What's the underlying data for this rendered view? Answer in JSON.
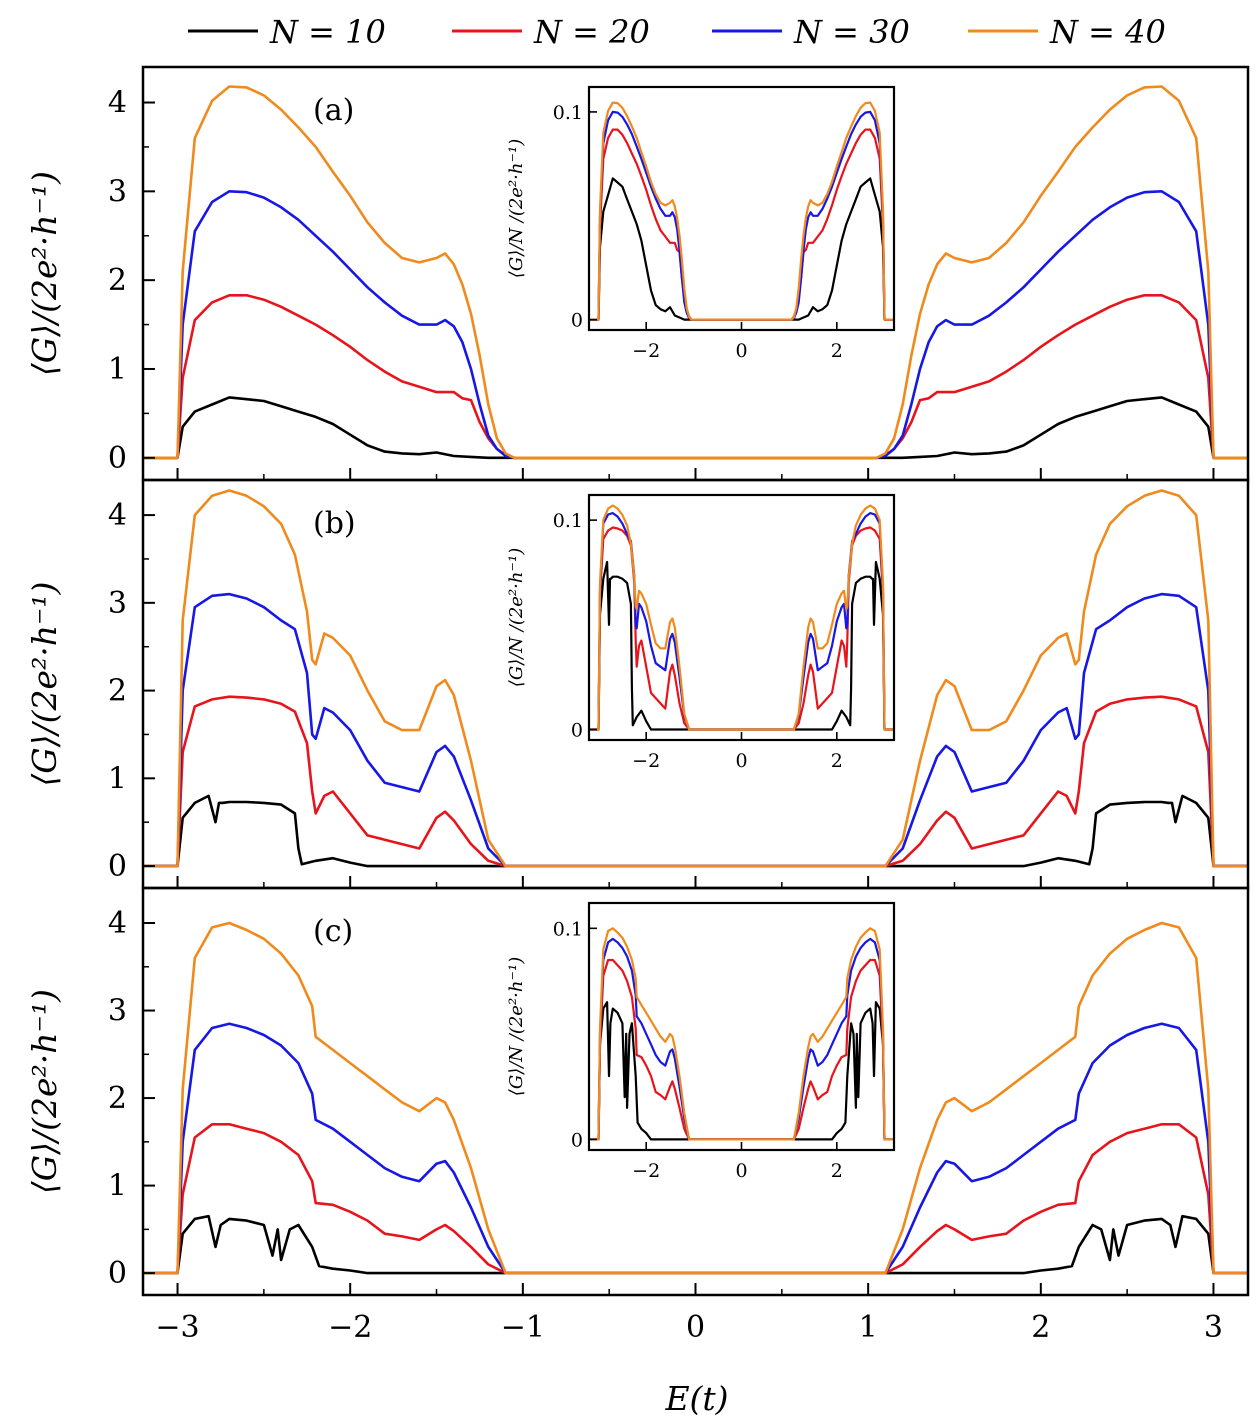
{
  "chart_data": {
    "type": "line",
    "legend": {
      "placement": "top",
      "entries": [
        {
          "label": "N = 10",
          "color": "#000000"
        },
        {
          "label": "N = 20",
          "color": "#e8141c"
        },
        {
          "label": "N = 30",
          "color": "#1717e6"
        },
        {
          "label": "N = 40",
          "color": "#f08a1c"
        }
      ]
    },
    "xlabel": "E(t)",
    "ylabel": "⟨G⟩/(2e²·h⁻¹)",
    "xlim": [
      -3.2,
      3.2
    ],
    "ylim": [
      -0.25,
      4.4
    ],
    "xticks": [
      -3,
      -2,
      -1,
      0,
      1,
      2,
      3
    ],
    "yticks": [
      0,
      1,
      2,
      3,
      4
    ],
    "inset": {
      "ylabel": "⟨G⟩/N /(2e²·h⁻¹)",
      "xlim": [
        -3.2,
        3.2
      ],
      "ylim": [
        -0.005,
        0.112
      ],
      "xticks": [
        -2,
        0,
        2
      ],
      "yticks": [
        0,
        0.1
      ],
      "yticklabels": [
        "0",
        "0.1"
      ]
    },
    "panels": [
      {
        "tag": "(a)",
        "series": [
          {
            "name": "N = 10",
            "x": [
              -3.0,
              -2.97,
              -2.9,
              -2.8,
              -2.7,
              -2.6,
              -2.5,
              -2.4,
              -2.3,
              -2.2,
              -2.1,
              -2.0,
              -1.9,
              -1.8,
              -1.7,
              -1.6,
              -1.5,
              -1.4,
              -1.3,
              -1.2,
              -1.0
            ],
            "y": [
              0.0,
              0.35,
              0.52,
              0.6,
              0.68,
              0.66,
              0.64,
              0.58,
              0.52,
              0.46,
              0.38,
              0.26,
              0.14,
              0.07,
              0.05,
              0.04,
              0.06,
              0.02,
              0.01,
              0.0,
              0.0
            ]
          },
          {
            "name": "N = 20",
            "x": [
              -3.0,
              -2.97,
              -2.9,
              -2.8,
              -2.7,
              -2.6,
              -2.5,
              -2.4,
              -2.3,
              -2.2,
              -2.1,
              -2.0,
              -1.9,
              -1.8,
              -1.7,
              -1.6,
              -1.5,
              -1.4,
              -1.35,
              -1.3,
              -1.25,
              -1.2,
              -1.15,
              -1.1,
              -1.05
            ],
            "y": [
              0.0,
              0.9,
              1.55,
              1.75,
              1.83,
              1.83,
              1.78,
              1.7,
              1.6,
              1.5,
              1.38,
              1.25,
              1.1,
              0.97,
              0.86,
              0.8,
              0.74,
              0.74,
              0.67,
              0.65,
              0.4,
              0.22,
              0.1,
              0.03,
              0.0
            ]
          },
          {
            "name": "N = 30",
            "x": [
              -3.0,
              -2.97,
              -2.9,
              -2.8,
              -2.7,
              -2.6,
              -2.5,
              -2.4,
              -2.3,
              -2.2,
              -2.1,
              -2.0,
              -1.9,
              -1.8,
              -1.7,
              -1.6,
              -1.5,
              -1.45,
              -1.4,
              -1.35,
              -1.3,
              -1.25,
              -1.2,
              -1.15,
              -1.1,
              -1.05
            ],
            "y": [
              0.0,
              1.5,
              2.55,
              2.88,
              3.0,
              2.99,
              2.93,
              2.82,
              2.68,
              2.5,
              2.32,
              2.12,
              1.92,
              1.75,
              1.6,
              1.5,
              1.5,
              1.55,
              1.48,
              1.3,
              1.0,
              0.6,
              0.25,
              0.1,
              0.02,
              0.0
            ]
          },
          {
            "name": "N = 40",
            "x": [
              -3.0,
              -2.97,
              -2.9,
              -2.8,
              -2.7,
              -2.6,
              -2.5,
              -2.4,
              -2.3,
              -2.2,
              -2.1,
              -2.0,
              -1.9,
              -1.8,
              -1.7,
              -1.6,
              -1.5,
              -1.45,
              -1.4,
              -1.35,
              -1.3,
              -1.25,
              -1.2,
              -1.15,
              -1.1,
              -1.05
            ],
            "y": [
              0.0,
              2.1,
              3.6,
              4.02,
              4.18,
              4.17,
              4.08,
              3.92,
              3.72,
              3.5,
              3.22,
              2.95,
              2.65,
              2.42,
              2.25,
              2.2,
              2.25,
              2.3,
              2.18,
              1.95,
              1.62,
              1.15,
              0.6,
              0.22,
              0.05,
              0.0
            ]
          }
        ]
      },
      {
        "tag": "(b)",
        "series": [
          {
            "name": "N = 10",
            "x": [
              -3.0,
              -2.97,
              -2.9,
              -2.82,
              -2.78,
              -2.76,
              -2.74,
              -2.7,
              -2.6,
              -2.5,
              -2.4,
              -2.32,
              -2.3,
              -2.28,
              -2.2,
              -2.1,
              -2.0,
              -1.9,
              -1.0
            ],
            "y": [
              0.0,
              0.55,
              0.72,
              0.8,
              0.5,
              0.72,
              0.72,
              0.73,
              0.73,
              0.72,
              0.7,
              0.6,
              0.2,
              0.02,
              0.06,
              0.09,
              0.04,
              0.0,
              0.0
            ]
          },
          {
            "name": "N = 20",
            "x": [
              -3.0,
              -2.97,
              -2.9,
              -2.8,
              -2.7,
              -2.6,
              -2.5,
              -2.4,
              -2.32,
              -2.25,
              -2.22,
              -2.2,
              -2.15,
              -2.1,
              -2.0,
              -1.9,
              -1.8,
              -1.7,
              -1.6,
              -1.5,
              -1.45,
              -1.4,
              -1.3,
              -1.2,
              -1.1
            ],
            "y": [
              0.0,
              1.3,
              1.82,
              1.9,
              1.93,
              1.92,
              1.9,
              1.85,
              1.76,
              1.4,
              0.85,
              0.6,
              0.8,
              0.85,
              0.6,
              0.35,
              0.3,
              0.25,
              0.2,
              0.55,
              0.62,
              0.52,
              0.25,
              0.06,
              0.0
            ]
          },
          {
            "name": "N = 30",
            "x": [
              -3.0,
              -2.97,
              -2.9,
              -2.8,
              -2.7,
              -2.6,
              -2.5,
              -2.4,
              -2.32,
              -2.25,
              -2.22,
              -2.2,
              -2.15,
              -2.1,
              -2.0,
              -1.9,
              -1.8,
              -1.7,
              -1.6,
              -1.5,
              -1.45,
              -1.4,
              -1.3,
              -1.2,
              -1.1
            ],
            "y": [
              0.0,
              2.0,
              2.95,
              3.08,
              3.1,
              3.05,
              2.95,
              2.8,
              2.7,
              2.2,
              1.5,
              1.45,
              1.8,
              1.75,
              1.55,
              1.2,
              0.95,
              0.9,
              0.85,
              1.3,
              1.37,
              1.25,
              0.75,
              0.2,
              0.0
            ]
          },
          {
            "name": "N = 40",
            "x": [
              -3.0,
              -2.97,
              -2.9,
              -2.8,
              -2.7,
              -2.6,
              -2.5,
              -2.4,
              -2.32,
              -2.25,
              -2.22,
              -2.2,
              -2.15,
              -2.1,
              -2.0,
              -1.9,
              -1.8,
              -1.7,
              -1.6,
              -1.5,
              -1.45,
              -1.4,
              -1.3,
              -1.2,
              -1.1
            ],
            "y": [
              0.0,
              2.8,
              4.0,
              4.22,
              4.28,
              4.22,
              4.1,
              3.9,
              3.55,
              2.9,
              2.35,
              2.3,
              2.65,
              2.6,
              2.4,
              2.0,
              1.65,
              1.55,
              1.55,
              2.05,
              2.12,
              1.95,
              1.2,
              0.3,
              0.0
            ]
          }
        ]
      },
      {
        "tag": "(c)",
        "series": [
          {
            "name": "N = 10",
            "x": [
              -3.0,
              -2.97,
              -2.9,
              -2.82,
              -2.78,
              -2.75,
              -2.7,
              -2.6,
              -2.5,
              -2.45,
              -2.42,
              -2.4,
              -2.35,
              -2.3,
              -2.22,
              -2.18,
              -2.1,
              -2.0,
              -1.9,
              -1.0
            ],
            "y": [
              0.0,
              0.45,
              0.62,
              0.65,
              0.3,
              0.55,
              0.62,
              0.6,
              0.55,
              0.2,
              0.5,
              0.15,
              0.5,
              0.55,
              0.3,
              0.08,
              0.05,
              0.03,
              0.0,
              0.0
            ]
          },
          {
            "name": "N = 20",
            "x": [
              -3.0,
              -2.97,
              -2.9,
              -2.8,
              -2.7,
              -2.6,
              -2.5,
              -2.4,
              -2.3,
              -2.22,
              -2.2,
              -2.1,
              -2.0,
              -1.9,
              -1.8,
              -1.7,
              -1.6,
              -1.5,
              -1.45,
              -1.4,
              -1.3,
              -1.2,
              -1.1
            ],
            "y": [
              0.0,
              0.9,
              1.55,
              1.7,
              1.7,
              1.65,
              1.6,
              1.5,
              1.35,
              1.05,
              0.8,
              0.78,
              0.7,
              0.6,
              0.45,
              0.42,
              0.38,
              0.5,
              0.55,
              0.48,
              0.3,
              0.1,
              0.0
            ]
          },
          {
            "name": "N = 30",
            "x": [
              -3.0,
              -2.97,
              -2.9,
              -2.8,
              -2.7,
              -2.6,
              -2.5,
              -2.4,
              -2.3,
              -2.22,
              -2.2,
              -2.1,
              -2.0,
              -1.9,
              -1.8,
              -1.7,
              -1.6,
              -1.5,
              -1.45,
              -1.4,
              -1.3,
              -1.2,
              -1.1
            ],
            "y": [
              0.0,
              1.5,
              2.55,
              2.8,
              2.85,
              2.8,
              2.72,
              2.6,
              2.4,
              2.05,
              1.75,
              1.65,
              1.5,
              1.35,
              1.2,
              1.1,
              1.05,
              1.25,
              1.28,
              1.15,
              0.75,
              0.3,
              0.0
            ]
          },
          {
            "name": "N = 40",
            "x": [
              -3.0,
              -2.97,
              -2.9,
              -2.8,
              -2.7,
              -2.6,
              -2.5,
              -2.4,
              -2.3,
              -2.22,
              -2.2,
              -2.1,
              -2.0,
              -1.9,
              -1.8,
              -1.7,
              -1.6,
              -1.5,
              -1.45,
              -1.4,
              -1.3,
              -1.2,
              -1.1
            ],
            "y": [
              0.0,
              2.1,
              3.6,
              3.95,
              4.0,
              3.92,
              3.82,
              3.65,
              3.4,
              3.05,
              2.7,
              2.55,
              2.4,
              2.25,
              2.1,
              1.95,
              1.85,
              2.0,
              1.95,
              1.75,
              1.2,
              0.5,
              0.0
            ]
          }
        ]
      }
    ]
  }
}
